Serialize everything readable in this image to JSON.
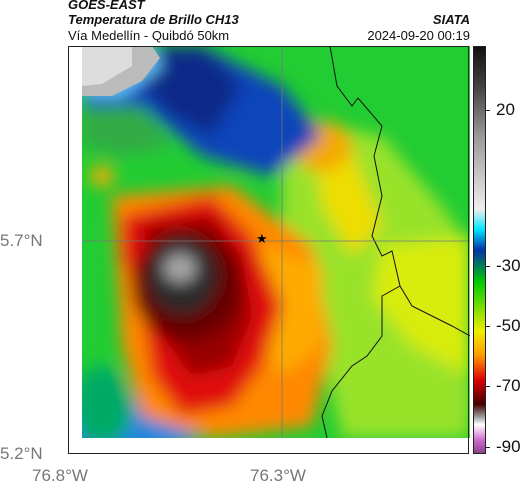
{
  "header": {
    "title": "GOES-EAST",
    "subtitle": "Temperatura de Brillo CH13",
    "location": "Vía Medellín - Quibdó 50km",
    "brand": "SIATA",
    "timestamp": "2024-09-20 00:19"
  },
  "axes": {
    "lat_ticks": [
      "5.7°N",
      "5.2°N"
    ],
    "lon_ticks": [
      "76.8°W",
      "76.3°W"
    ]
  },
  "colorbar": {
    "labels": [
      "20",
      "-30",
      "-50",
      "-70",
      "-90"
    ],
    "colors": [
      "#222222",
      "#888888",
      "#ffffff",
      "#00e5ff",
      "#0033aa",
      "#00cc00",
      "#eeee00",
      "#ff9900",
      "#dd0000",
      "#550000",
      "#cccccc",
      "#cc66cc"
    ]
  },
  "marker": {
    "icon": "star-icon"
  }
}
